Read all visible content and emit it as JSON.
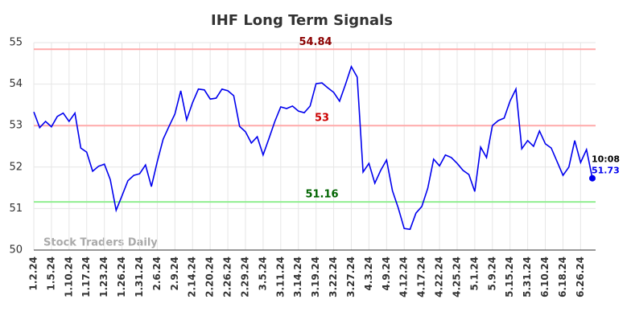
{
  "chart_data": {
    "type": "line",
    "title": "IHF Long Term Signals",
    "watermark": "Stock Traders Daily",
    "categories": [
      "1.2.24",
      null,
      null,
      "1.5.24",
      null,
      null,
      "1.10.24",
      null,
      null,
      "1.17.24",
      null,
      null,
      "1.23.24",
      null,
      null,
      "1.26.24",
      null,
      null,
      "1.31.24",
      null,
      null,
      "2.6.24",
      null,
      null,
      "2.9.24",
      null,
      null,
      "2.14.24",
      null,
      null,
      "2.20.24",
      null,
      null,
      "2.26.24",
      null,
      null,
      "2.29.24",
      null,
      null,
      "3.5.24",
      null,
      null,
      "3.11.24",
      null,
      null,
      "3.14.24",
      null,
      null,
      "3.19.24",
      null,
      null,
      "3.22.24",
      null,
      null,
      "3.27.24",
      null,
      null,
      "4.3.24",
      null,
      null,
      "4.9.24",
      null,
      null,
      "4.12.24",
      null,
      null,
      "4.17.24",
      null,
      null,
      "4.22.24",
      null,
      null,
      "4.25.24",
      null,
      null,
      "5.1.24",
      null,
      null,
      "5.9.24",
      null,
      null,
      "5.15.24",
      null,
      null,
      "5.31.24",
      null,
      null,
      "6.10.24",
      null,
      null,
      "6.18.24",
      null,
      null,
      "6.26.24",
      null,
      null
    ],
    "series": [
      {
        "color": "#0000ee",
        "values": [
          53.33,
          52.95,
          53.1,
          52.97,
          53.22,
          53.3,
          53.1,
          53.3,
          52.46,
          52.36,
          51.9,
          52.02,
          52.07,
          51.7,
          50.96,
          51.31,
          51.67,
          51.8,
          51.84,
          52.05,
          51.53,
          52.13,
          52.67,
          52.98,
          53.28,
          53.84,
          53.14,
          53.55,
          53.88,
          53.86,
          53.64,
          53.66,
          53.88,
          53.84,
          53.72,
          52.98,
          52.85,
          52.58,
          52.73,
          52.29,
          52.69,
          53.1,
          53.45,
          53.41,
          53.47,
          53.35,
          53.31,
          53.47,
          54.01,
          54.03,
          53.91,
          53.8,
          53.59,
          53.99,
          54.42,
          54.17,
          51.88,
          52.09,
          51.61,
          51.92,
          52.17,
          51.43,
          51.01,
          50.52,
          50.5,
          50.89,
          51.05,
          51.49,
          52.19,
          52.03,
          52.29,
          52.23,
          52.09,
          51.92,
          51.82,
          51.41,
          52.48,
          52.23,
          53.0,
          53.12,
          53.18,
          53.59,
          53.88,
          52.44,
          52.64,
          52.5,
          52.87,
          52.56,
          52.46,
          52.13,
          51.8,
          52.0,
          52.64,
          52.11,
          52.42,
          51.73
        ]
      }
    ],
    "last_time": "10:08",
    "hlines": [
      {
        "value": 54.84,
        "color": "#ffaaaa",
        "label_color": "#8b0000"
      },
      {
        "value": 53,
        "color": "#ffaaaa",
        "label_color": "#cc0000"
      },
      {
        "value": 51.16,
        "color": "#90ee90",
        "label_color": "#006400"
      }
    ],
    "ylim": [
      50,
      55
    ],
    "yticks": [
      50,
      51,
      52,
      53,
      54,
      55
    ],
    "grid": true
  }
}
